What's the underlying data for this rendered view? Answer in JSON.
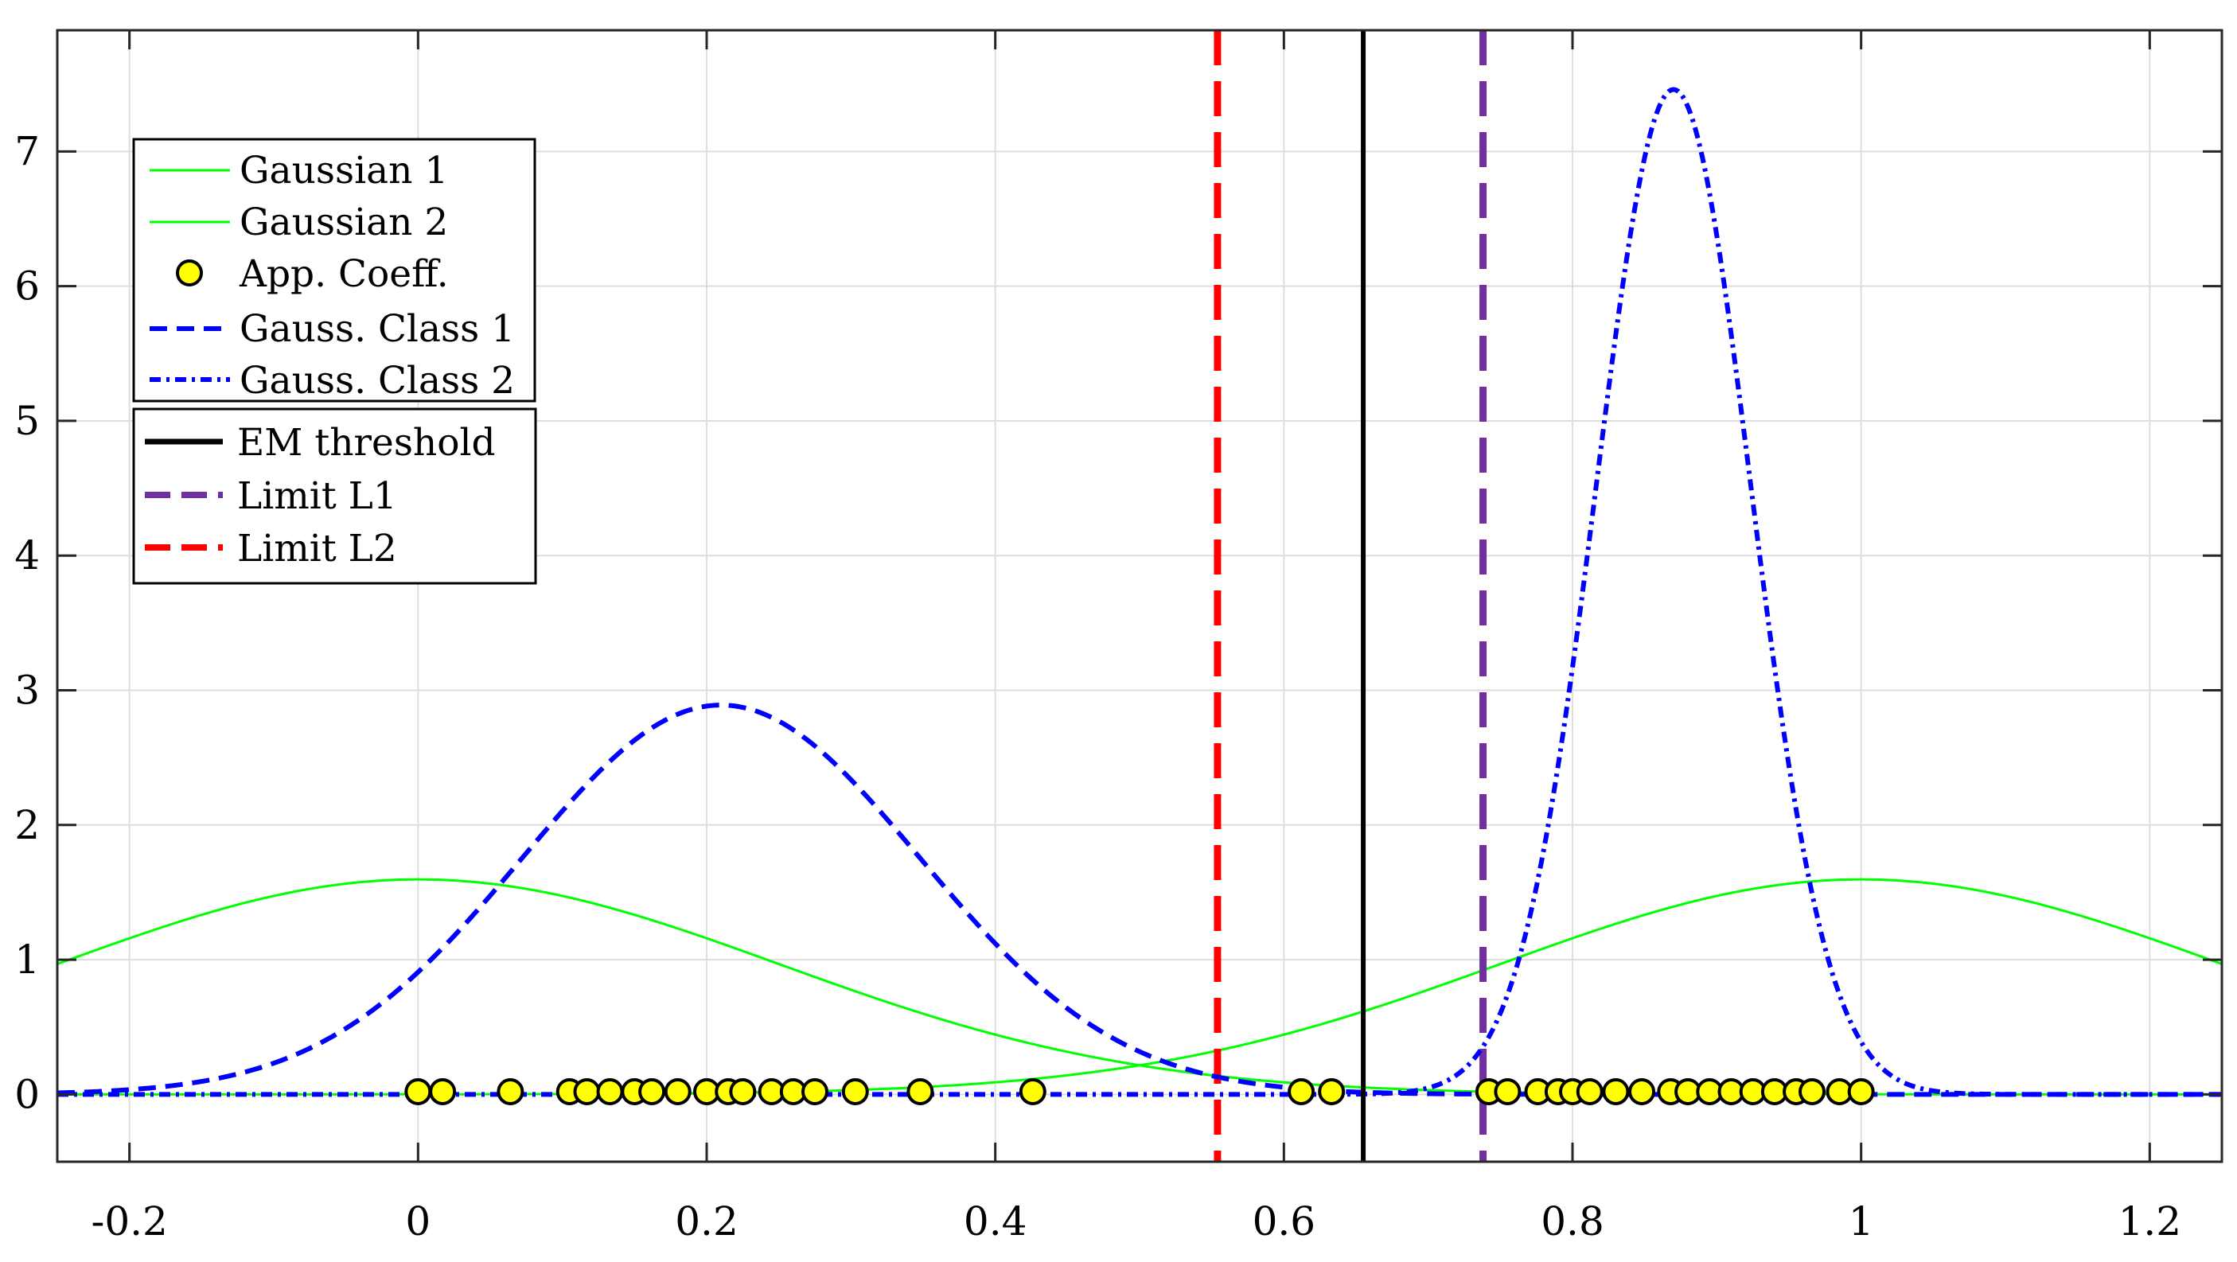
{
  "chart_data": {
    "type": "line",
    "xlim": [
      -0.25,
      1.25
    ],
    "ylim": [
      -0.5,
      7.9
    ],
    "grid": true,
    "xticks": [
      -0.2,
      0,
      0.2,
      0.4,
      0.6,
      0.8,
      1,
      1.2
    ],
    "xtick_labels": [
      "-0.2",
      "0",
      "0.2",
      "0.4",
      "0.6",
      "0.8",
      "1",
      "1.2"
    ],
    "yticks": [
      0,
      1,
      2,
      3,
      4,
      5,
      6,
      7
    ],
    "ytick_labels": [
      "0",
      "1",
      "2",
      "3",
      "4",
      "5",
      "6",
      "7"
    ],
    "colors": {
      "gaussian": "#00ff00",
      "class": "#0000ff",
      "em": "#000000",
      "l1": "#7030a0",
      "l2": "#ff0000",
      "marker_fill": "#ffff00"
    },
    "series": [
      {
        "name": "Gaussian 1",
        "kind": "gaussian",
        "mu": 0.0,
        "sigma": 0.25,
        "peak": 1.596
      },
      {
        "name": "Gaussian 2",
        "kind": "gaussian",
        "mu": 1.0,
        "sigma": 0.25,
        "peak": 1.596
      },
      {
        "name": "App. Coeff.",
        "kind": "markers",
        "y": 0.02,
        "x": [
          0.0,
          0.017,
          0.064,
          0.105,
          0.117,
          0.133,
          0.15,
          0.162,
          0.18,
          0.2,
          0.215,
          0.225,
          0.245,
          0.26,
          0.275,
          0.303,
          0.348,
          0.426,
          0.612,
          0.633,
          0.742,
          0.755,
          0.776,
          0.79,
          0.8,
          0.812,
          0.83,
          0.848,
          0.868,
          0.88,
          0.895,
          0.91,
          0.925,
          0.94,
          0.955,
          0.966,
          0.985,
          1.0
        ]
      },
      {
        "name": "Gauss. Class 1",
        "kind": "gaussian",
        "mu": 0.21,
        "sigma": 0.138,
        "peak": 2.89
      },
      {
        "name": "Gauss. Class 2",
        "kind": "gaussian",
        "mu": 0.87,
        "sigma": 0.0535,
        "peak": 7.46
      }
    ],
    "thresholds": [
      {
        "name": "EM threshold",
        "x": 0.655
      },
      {
        "name": "Limit L1",
        "x": 0.738
      },
      {
        "name": "Limit L2",
        "x": 0.554
      }
    ],
    "legend_placement": "top-left",
    "legend": {
      "box1": [
        "Gaussian 1",
        "Gaussian 2",
        "App. Coeff.",
        "Gauss. Class 1",
        "Gauss. Class 2"
      ],
      "box2": [
        "EM threshold",
        "Limit L1",
        "Limit L2"
      ]
    }
  }
}
